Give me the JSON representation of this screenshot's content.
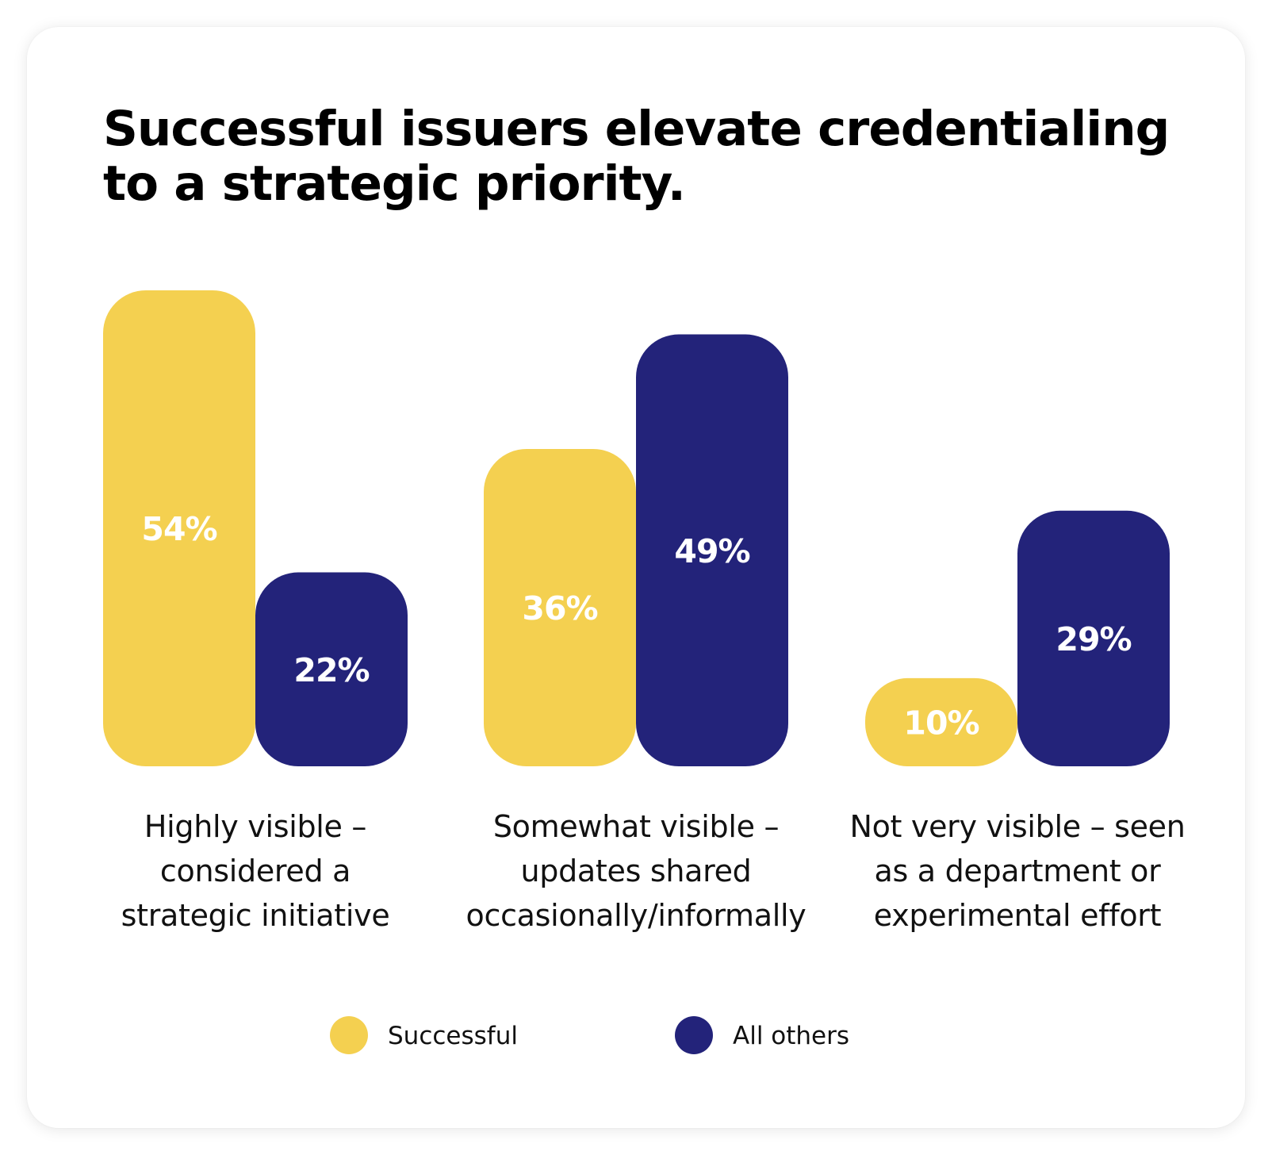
{
  "chart_data": {
    "type": "bar",
    "title": "Successful issuers elevate credentialing to a strategic priority.",
    "categories": [
      [
        "Highly visible –",
        "considered a",
        "strategic initiative"
      ],
      [
        "Somewhat visible –",
        "updates shared",
        "occasionally/informally"
      ],
      [
        "Not very visible – seen",
        "as a department or",
        "experimental effort"
      ]
    ],
    "series": [
      {
        "name": "Successful",
        "color": "#F4D050",
        "values": [
          54,
          36,
          10
        ],
        "labels": [
          "54%",
          "36%",
          "10%"
        ]
      },
      {
        "name": "All others",
        "color": "#23237A",
        "values": [
          22,
          49,
          29
        ],
        "labels": [
          "22%",
          "49%",
          "29%"
        ]
      }
    ],
    "ylim": [
      0,
      54
    ],
    "grid": false,
    "legend_position": "bottom"
  }
}
